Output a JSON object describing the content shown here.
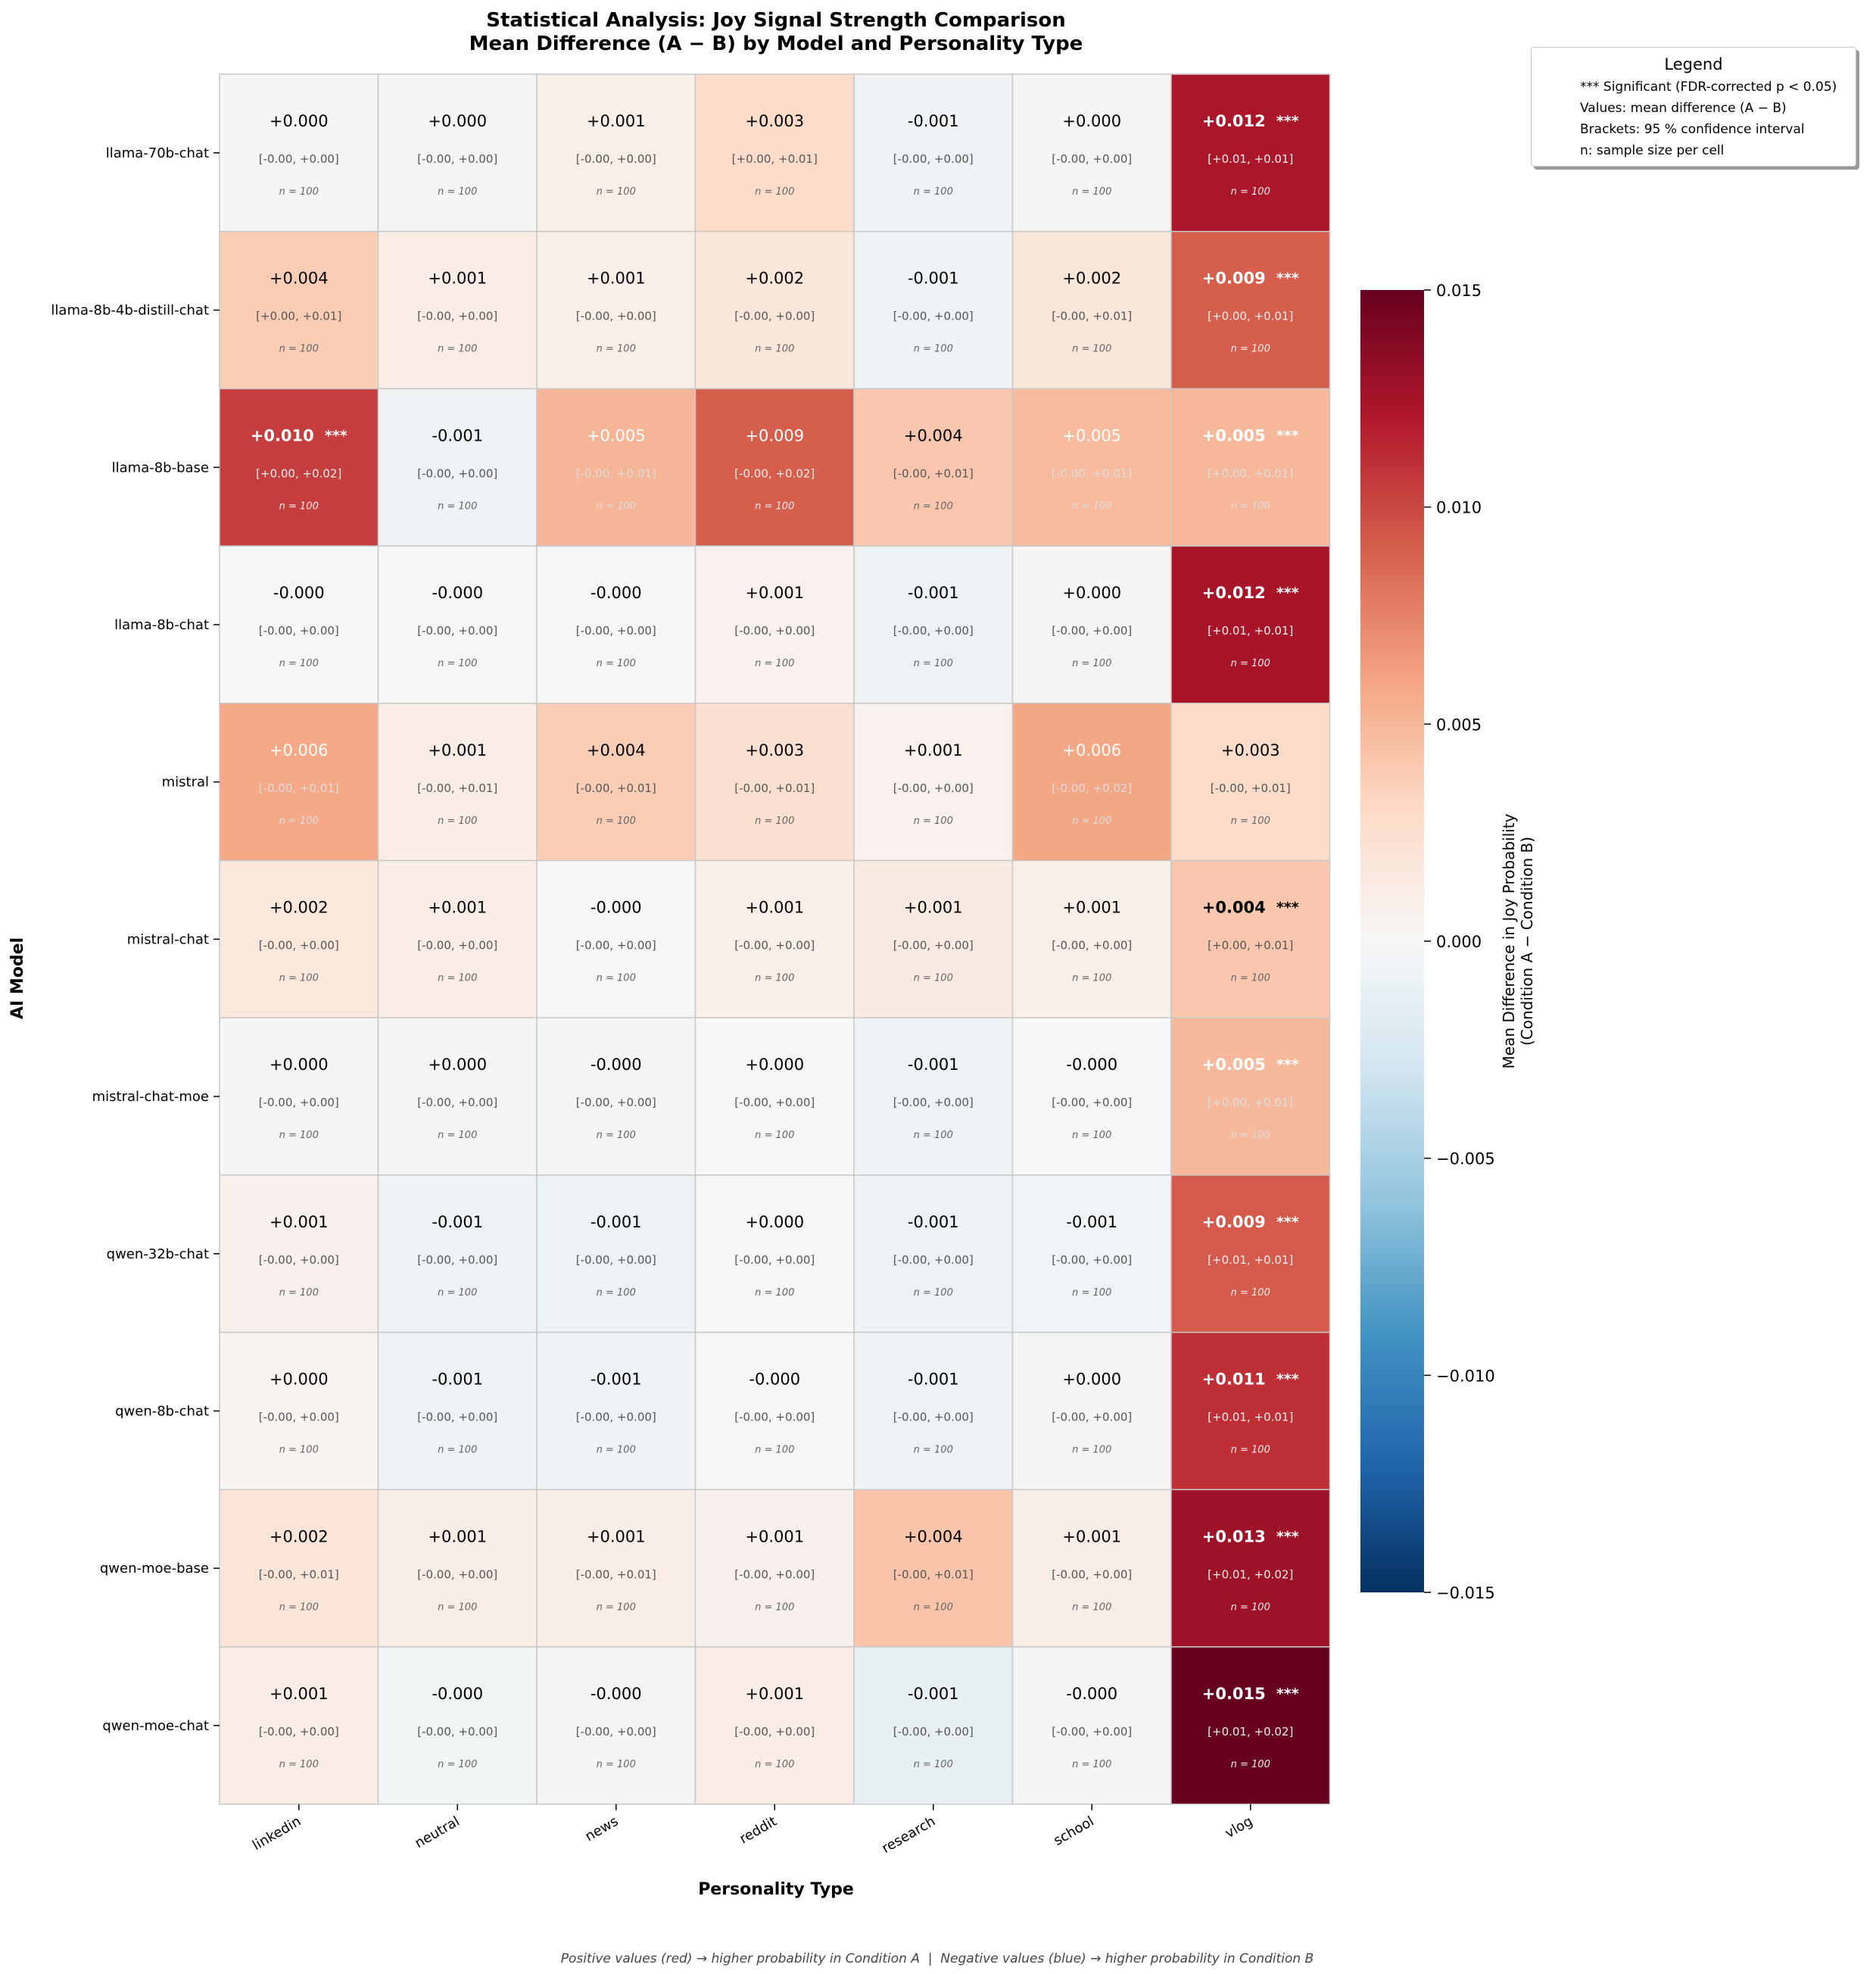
{
  "chart_data": {
    "type": "heatmap",
    "title": "Statistical Analysis: Joy Signal Strength Comparison",
    "subtitle": "Mean Difference (A − B) by Model and Personality Type",
    "xlabel": "Personality Type",
    "ylabel": "AI Model",
    "footnote": "Positive values (red) → higher probability in Condition A  |  Negative values (blue) → higher probability in Condition B",
    "colorbar": {
      "label_line1": "Mean Difference in Joy Probability",
      "label_line2": "(Condition A − Condition B)",
      "range": [
        -0.015,
        0.015
      ],
      "ticks": [
        "0.015",
        "0.010",
        "0.005",
        "0.000",
        "−0.005",
        "−0.010",
        "−0.015"
      ],
      "colormap": "RdBu_r"
    },
    "legend": {
      "title": "Legend",
      "placement": "top-right",
      "lines": [
        "*** Significant (FDR-corrected p < 0.05)",
        "Values: mean difference (A − B)",
        "Brackets: 95 % confidence interval",
        "n: sample size per cell"
      ]
    },
    "columns": [
      "linkedin",
      "neutral",
      "news",
      "reddit",
      "research",
      "school",
      "vlog"
    ],
    "rows": [
      "llama-70b-chat",
      "llama-8b-4b-distill-chat",
      "llama-8b-base",
      "llama-8b-chat",
      "mistral",
      "mistral-chat",
      "mistral-chat-moe",
      "qwen-32b-chat",
      "qwen-8b-chat",
      "qwen-moe-base",
      "qwen-moe-chat"
    ],
    "significance_marker": "***",
    "n_label": "n = 100",
    "cells": [
      [
        {
          "v": 0.0002,
          "label": "+0.000",
          "ci": "[-0.00, +0.00]",
          "sig": false
        },
        {
          "v": 0.0002,
          "label": "+0.000",
          "ci": "[-0.00, +0.00]",
          "sig": false
        },
        {
          "v": 0.0009,
          "label": "+0.001",
          "ci": "[-0.00, +0.00]",
          "sig": false
        },
        {
          "v": 0.0028,
          "label": "+0.003",
          "ci": "[+0.00, +0.01]",
          "sig": false
        },
        {
          "v": -0.0006,
          "label": "-0.001",
          "ci": "[-0.00, +0.00]",
          "sig": false
        },
        {
          "v": 0.0002,
          "label": "+0.000",
          "ci": "[-0.00, +0.00]",
          "sig": false
        },
        {
          "v": 0.0123,
          "label": "+0.012",
          "ci": "[+0.01, +0.01]",
          "sig": true
        }
      ],
      [
        {
          "v": 0.0038,
          "label": "+0.004",
          "ci": "[+0.00, +0.01]",
          "sig": false
        },
        {
          "v": 0.0011,
          "label": "+0.001",
          "ci": "[-0.00, +0.00]",
          "sig": false
        },
        {
          "v": 0.0009,
          "label": "+0.001",
          "ci": "[-0.00, +0.00]",
          "sig": false
        },
        {
          "v": 0.0018,
          "label": "+0.002",
          "ci": "[-0.00, +0.00]",
          "sig": false
        },
        {
          "v": -0.0006,
          "label": "-0.001",
          "ci": "[-0.00, +0.00]",
          "sig": false
        },
        {
          "v": 0.0018,
          "label": "+0.002",
          "ci": "[-0.00, +0.01]",
          "sig": false
        },
        {
          "v": 0.0091,
          "label": "+0.009",
          "ci": "[+0.00, +0.01]",
          "sig": true
        }
      ],
      [
        {
          "v": 0.0104,
          "label": "+0.010",
          "ci": "[+0.00, +0.02]",
          "sig": true
        },
        {
          "v": -0.0006,
          "label": "-0.001",
          "ci": "[-0.00, +0.00]",
          "sig": false
        },
        {
          "v": 0.0051,
          "label": "+0.005",
          "ci": "[-0.00, +0.01]",
          "sig": false
        },
        {
          "v": 0.0091,
          "label": "+0.009",
          "ci": "[-0.00, +0.02]",
          "sig": false
        },
        {
          "v": 0.0041,
          "label": "+0.004",
          "ci": "[-0.00, +0.01]",
          "sig": false
        },
        {
          "v": 0.0048,
          "label": "+0.005",
          "ci": "[-0.00, +0.01]",
          "sig": false
        },
        {
          "v": 0.005,
          "label": "+0.005",
          "ci": "[+0.00, +0.01]",
          "sig": true
        }
      ],
      [
        {
          "v": -0.0002,
          "label": "-0.000",
          "ci": "[-0.00, +0.00]",
          "sig": false
        },
        {
          "v": -0.0002,
          "label": "-0.000",
          "ci": "[-0.00, +0.00]",
          "sig": false
        },
        {
          "v": -0.0002,
          "label": "-0.000",
          "ci": "[-0.00, +0.00]",
          "sig": false
        },
        {
          "v": 0.0006,
          "label": "+0.001",
          "ci": "[-0.00, +0.00]",
          "sig": false
        },
        {
          "v": -0.0008,
          "label": "-0.001",
          "ci": "[-0.00, +0.00]",
          "sig": false
        },
        {
          "v": 0.0002,
          "label": "+0.000",
          "ci": "[-0.00, +0.00]",
          "sig": false
        },
        {
          "v": 0.0124,
          "label": "+0.012",
          "ci": "[+0.01, +0.01]",
          "sig": true
        }
      ],
      [
        {
          "v": 0.0058,
          "label": "+0.006",
          "ci": "[-0.00, +0.01]",
          "sig": false
        },
        {
          "v": 0.0011,
          "label": "+0.001",
          "ci": "[-0.00, +0.01]",
          "sig": false
        },
        {
          "v": 0.0038,
          "label": "+0.004",
          "ci": "[-0.00, +0.01]",
          "sig": false
        },
        {
          "v": 0.0025,
          "label": "+0.003",
          "ci": "[-0.00, +0.01]",
          "sig": false
        },
        {
          "v": 0.0006,
          "label": "+0.001",
          "ci": "[-0.00, +0.00]",
          "sig": false
        },
        {
          "v": 0.0059,
          "label": "+0.006",
          "ci": "[-0.00, +0.02]",
          "sig": false
        },
        {
          "v": 0.0028,
          "label": "+0.003",
          "ci": "[-0.00, +0.01]",
          "sig": false
        }
      ],
      [
        {
          "v": 0.0016,
          "label": "+0.002",
          "ci": "[-0.00, +0.00]",
          "sig": false
        },
        {
          "v": 0.0011,
          "label": "+0.001",
          "ci": "[-0.00, +0.00]",
          "sig": false
        },
        {
          "v": -0.0002,
          "label": "-0.000",
          "ci": "[-0.00, +0.00]",
          "sig": false
        },
        {
          "v": 0.0009,
          "label": "+0.001",
          "ci": "[-0.00, +0.00]",
          "sig": false
        },
        {
          "v": 0.0013,
          "label": "+0.001",
          "ci": "[-0.00, +0.00]",
          "sig": false
        },
        {
          "v": 0.0009,
          "label": "+0.001",
          "ci": "[-0.00, +0.00]",
          "sig": false
        },
        {
          "v": 0.0041,
          "label": "+0.004",
          "ci": "[+0.00, +0.01]",
          "sig": true
        }
      ],
      [
        {
          "v": 0.0002,
          "label": "+0.000",
          "ci": "[-0.00, +0.00]",
          "sig": false
        },
        {
          "v": 0.0002,
          "label": "+0.000",
          "ci": "[-0.00, +0.00]",
          "sig": false
        },
        {
          "v": -0.0003,
          "label": "-0.000",
          "ci": "[-0.00, +0.00]",
          "sig": false
        },
        {
          "v": 0.0001,
          "label": "+0.000",
          "ci": "[-0.00, +0.00]",
          "sig": false
        },
        {
          "v": -0.0007,
          "label": "-0.001",
          "ci": "[-0.00, +0.00]",
          "sig": false
        },
        {
          "v": -0.0002,
          "label": "-0.000",
          "ci": "[-0.00, +0.00]",
          "sig": false
        },
        {
          "v": 0.0049,
          "label": "+0.005",
          "ci": "[+0.00, +0.01]",
          "sig": true
        }
      ],
      [
        {
          "v": 0.0007,
          "label": "+0.001",
          "ci": "[-0.00, +0.00]",
          "sig": false
        },
        {
          "v": -0.0006,
          "label": "-0.001",
          "ci": "[-0.00, +0.00]",
          "sig": false
        },
        {
          "v": -0.0009,
          "label": "-0.001",
          "ci": "[-0.00, +0.00]",
          "sig": false
        },
        {
          "v": 0.0001,
          "label": "+0.000",
          "ci": "[-0.00, +0.00]",
          "sig": false
        },
        {
          "v": -0.0008,
          "label": "-0.001",
          "ci": "[-0.00, +0.00]",
          "sig": false
        },
        {
          "v": -0.0005,
          "label": "-0.001",
          "ci": "[-0.00, +0.00]",
          "sig": false
        },
        {
          "v": 0.0092,
          "label": "+0.009",
          "ci": "[+0.01, +0.01]",
          "sig": true
        }
      ],
      [
        {
          "v": 0.0003,
          "label": "+0.000",
          "ci": "[-0.00, +0.00]",
          "sig": false
        },
        {
          "v": -0.0006,
          "label": "-0.001",
          "ci": "[-0.00, +0.00]",
          "sig": false
        },
        {
          "v": -0.0006,
          "label": "-0.001",
          "ci": "[-0.00, +0.00]",
          "sig": false
        },
        {
          "v": -0.0002,
          "label": "-0.000",
          "ci": "[-0.00, +0.00]",
          "sig": false
        },
        {
          "v": -0.0006,
          "label": "-0.001",
          "ci": "[-0.00, +0.00]",
          "sig": false
        },
        {
          "v": 0.0002,
          "label": "+0.000",
          "ci": "[-0.00, +0.00]",
          "sig": false
        },
        {
          "v": 0.011,
          "label": "+0.011",
          "ci": "[+0.01, +0.01]",
          "sig": true
        }
      ],
      [
        {
          "v": 0.0019,
          "label": "+0.002",
          "ci": "[-0.00, +0.01]",
          "sig": false
        },
        {
          "v": 0.001,
          "label": "+0.001",
          "ci": "[-0.00, +0.00]",
          "sig": false
        },
        {
          "v": 0.001,
          "label": "+0.001",
          "ci": "[-0.00, +0.01]",
          "sig": false
        },
        {
          "v": 0.0007,
          "label": "+0.001",
          "ci": "[-0.00, +0.00]",
          "sig": false
        },
        {
          "v": 0.0043,
          "label": "+0.004",
          "ci": "[-0.00, +0.01]",
          "sig": false
        },
        {
          "v": 0.001,
          "label": "+0.001",
          "ci": "[-0.00, +0.00]",
          "sig": false
        },
        {
          "v": 0.0128,
          "label": "+0.013",
          "ci": "[+0.01, +0.02]",
          "sig": true
        }
      ],
      [
        {
          "v": 0.0011,
          "label": "+0.001",
          "ci": "[-0.00, +0.00]",
          "sig": false
        },
        {
          "v": -0.0004,
          "label": "-0.000",
          "ci": "[-0.00, +0.00]",
          "sig": false
        },
        {
          "v": -0.0003,
          "label": "-0.000",
          "ci": "[-0.00, +0.00]",
          "sig": false
        },
        {
          "v": 0.0011,
          "label": "+0.001",
          "ci": "[-0.00, +0.00]",
          "sig": false
        },
        {
          "v": -0.0011,
          "label": "-0.001",
          "ci": "[-0.00, +0.00]",
          "sig": false
        },
        {
          "v": -0.0003,
          "label": "-0.000",
          "ci": "[-0.00, +0.00]",
          "sig": false
        },
        {
          "v": 0.015,
          "label": "+0.015",
          "ci": "[+0.01, +0.02]",
          "sig": true
        }
      ]
    ]
  }
}
